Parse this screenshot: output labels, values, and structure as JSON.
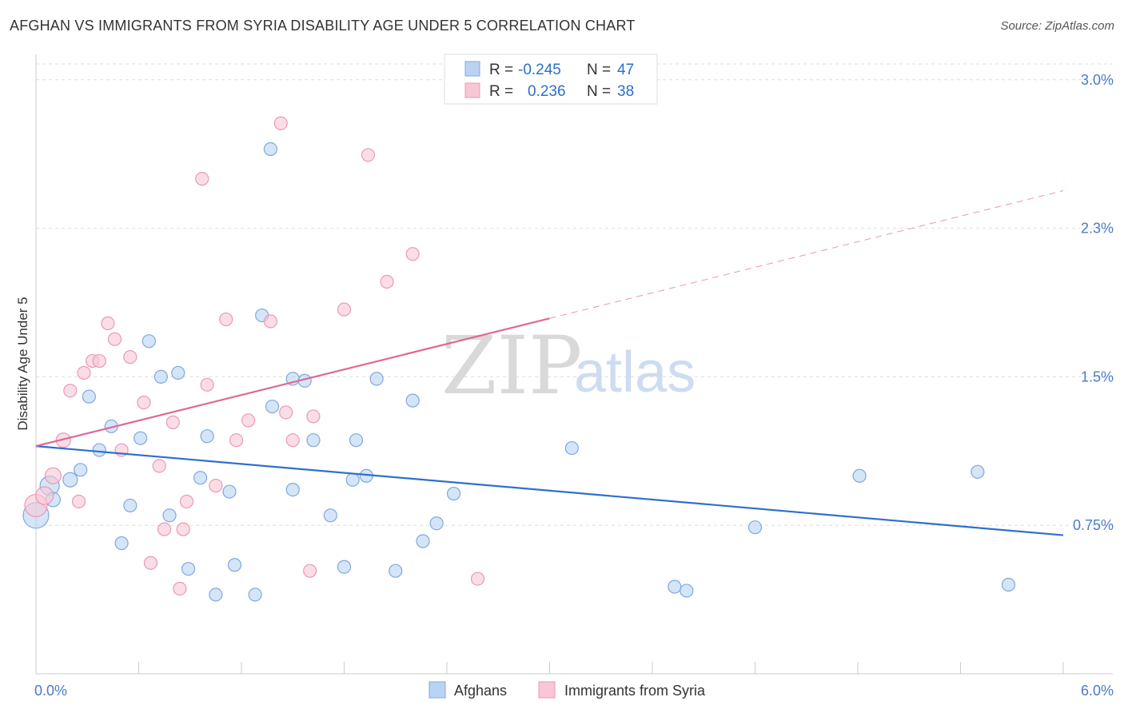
{
  "header": {
    "title": "AFGHAN VS IMMIGRANTS FROM SYRIA DISABILITY AGE UNDER 5 CORRELATION CHART",
    "source": "Source: ZipAtlas.com"
  },
  "watermark": {
    "zip": "ZIP",
    "atlas": "atlas"
  },
  "stats": [
    {
      "r_label": "R =",
      "r_value": "-0.245",
      "n_label": "N =",
      "n_value": "47",
      "color": "#b9d3f3",
      "stroke": "#7fa8dc"
    },
    {
      "r_label": "R =",
      "r_value": "0.236",
      "n_label": "N =",
      "n_value": "38",
      "color": "#f9c6d6",
      "stroke": "#e89ab4"
    }
  ],
  "legend": [
    {
      "label": "Afghans",
      "color": "#b9d3f3",
      "stroke": "#7fa8dc"
    },
    {
      "label": "Immigrants from Syria",
      "color": "#f9c6d6",
      "stroke": "#e89ab4"
    }
  ],
  "chart_data": {
    "type": "scatter",
    "title": "AFGHAN VS IMMIGRANTS FROM SYRIA DISABILITY AGE UNDER 5 CORRELATION CHART",
    "xlabel": "",
    "ylabel": "Disability Age Under 5",
    "xlim": [
      0,
      6
    ],
    "ylim": [
      0,
      3.1
    ],
    "x_tick_labels": [
      {
        "value": 0,
        "label": "0.0%"
      },
      {
        "value": 6,
        "label": "6.0%"
      }
    ],
    "y_tick_labels": [
      {
        "value": 0.75,
        "label": "0.75%"
      },
      {
        "value": 1.5,
        "label": "1.5%"
      },
      {
        "value": 2.25,
        "label": "2.3%"
      },
      {
        "value": 3.0,
        "label": "3.0%"
      }
    ],
    "grid": true,
    "legend_position": "bottom",
    "series": [
      {
        "name": "Afghans",
        "color": "#b9d3f3",
        "stroke": "#7fa8dc",
        "line_color": "#2f6fcf",
        "trend": {
          "x0": 0,
          "y0": 1.15,
          "x1": 6,
          "y1": 0.7,
          "solid_until": 6
        },
        "points": [
          [
            0.0,
            0.8,
            16
          ],
          [
            0.08,
            0.95,
            12
          ],
          [
            0.1,
            0.88,
            9
          ],
          [
            0.2,
            0.98,
            9
          ],
          [
            0.26,
            1.03,
            8
          ],
          [
            0.31,
            1.4,
            8
          ],
          [
            0.37,
            1.13,
            8
          ],
          [
            0.44,
            1.25,
            8
          ],
          [
            0.5,
            0.66,
            8
          ],
          [
            0.55,
            0.85,
            8
          ],
          [
            0.61,
            1.19,
            8
          ],
          [
            0.66,
            1.68,
            8
          ],
          [
            0.73,
            1.5,
            8
          ],
          [
            0.78,
            0.8,
            8
          ],
          [
            0.83,
            1.52,
            8
          ],
          [
            0.89,
            0.53,
            8
          ],
          [
            0.96,
            0.99,
            8
          ],
          [
            1.0,
            1.2,
            8
          ],
          [
            1.05,
            0.4,
            8
          ],
          [
            1.13,
            0.92,
            8
          ],
          [
            1.16,
            0.55,
            8
          ],
          [
            1.28,
            0.4,
            8
          ],
          [
            1.32,
            1.81,
            8
          ],
          [
            1.37,
            2.65,
            8
          ],
          [
            1.38,
            1.35,
            8
          ],
          [
            1.5,
            1.49,
            8
          ],
          [
            1.5,
            0.93,
            8
          ],
          [
            1.57,
            1.48,
            8
          ],
          [
            1.62,
            1.18,
            8
          ],
          [
            1.72,
            0.8,
            8
          ],
          [
            1.8,
            0.54,
            8
          ],
          [
            1.85,
            0.98,
            8
          ],
          [
            1.87,
            1.18,
            8
          ],
          [
            1.93,
            1.0,
            8
          ],
          [
            1.99,
            1.49,
            8
          ],
          [
            2.1,
            0.52,
            8
          ],
          [
            2.2,
            1.38,
            8
          ],
          [
            2.26,
            0.67,
            8
          ],
          [
            2.34,
            0.76,
            8
          ],
          [
            2.44,
            0.91,
            8
          ],
          [
            3.13,
            1.14,
            8
          ],
          [
            3.73,
            0.44,
            8
          ],
          [
            3.8,
            0.42,
            8
          ],
          [
            4.2,
            0.74,
            8
          ],
          [
            4.81,
            1.0,
            8
          ],
          [
            5.5,
            1.02,
            8
          ],
          [
            5.68,
            0.45,
            8
          ]
        ]
      },
      {
        "name": "Immigrants from Syria",
        "color": "#f9c6d6",
        "stroke": "#e89ab4",
        "line_color": "#e06895",
        "trend": {
          "x0": 0,
          "y0": 1.15,
          "x1": 6,
          "y1": 2.44,
          "solid_until": 3.0
        },
        "points": [
          [
            0.0,
            0.85,
            14
          ],
          [
            0.05,
            0.9,
            11
          ],
          [
            0.1,
            1.0,
            10
          ],
          [
            0.16,
            1.18,
            9
          ],
          [
            0.2,
            1.43,
            8
          ],
          [
            0.25,
            0.87,
            8
          ],
          [
            0.28,
            1.52,
            8
          ],
          [
            0.33,
            1.58,
            8
          ],
          [
            0.37,
            1.58,
            8
          ],
          [
            0.42,
            1.77,
            8
          ],
          [
            0.46,
            1.69,
            8
          ],
          [
            0.5,
            1.13,
            8
          ],
          [
            0.55,
            1.6,
            8
          ],
          [
            0.63,
            1.37,
            8
          ],
          [
            0.67,
            0.56,
            8
          ],
          [
            0.72,
            1.05,
            8
          ],
          [
            0.75,
            0.73,
            8
          ],
          [
            0.8,
            1.27,
            8
          ],
          [
            0.84,
            0.43,
            8
          ],
          [
            0.86,
            0.73,
            8
          ],
          [
            0.88,
            0.87,
            8
          ],
          [
            0.97,
            2.5,
            8
          ],
          [
            1.0,
            1.46,
            8
          ],
          [
            1.05,
            0.95,
            8
          ],
          [
            1.11,
            1.79,
            8
          ],
          [
            1.17,
            1.18,
            8
          ],
          [
            1.24,
            1.28,
            8
          ],
          [
            1.37,
            1.78,
            8
          ],
          [
            1.43,
            2.78,
            8
          ],
          [
            1.46,
            1.32,
            8
          ],
          [
            1.5,
            1.18,
            8
          ],
          [
            1.6,
            0.52,
            8
          ],
          [
            1.62,
            1.3,
            8
          ],
          [
            1.8,
            1.84,
            8
          ],
          [
            1.94,
            2.62,
            8
          ],
          [
            2.05,
            1.98,
            8
          ],
          [
            2.2,
            2.12,
            8
          ],
          [
            2.58,
            0.48,
            8
          ]
        ]
      }
    ]
  }
}
